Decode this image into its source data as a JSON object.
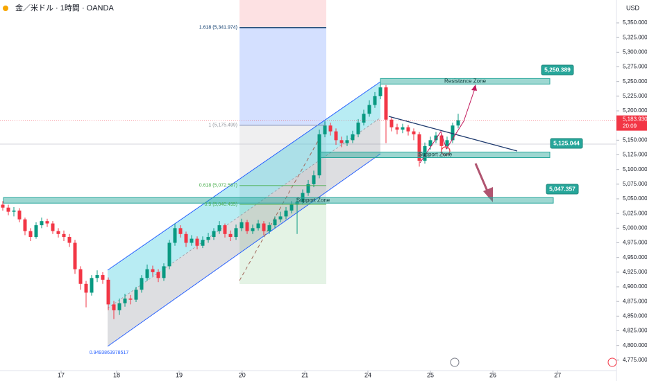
{
  "chart_data": {
    "type": "candlestick",
    "title": "金／米ドル · 1時間 · OANDA",
    "currency": "USD",
    "up_color": "#089981",
    "down_color": "#f23645",
    "open": [
      5040,
      5035,
      5028,
      5030,
      5015,
      4995,
      4985,
      5005,
      5012,
      5008,
      4995,
      4990,
      4985,
      4975,
      4930,
      4905,
      4890,
      4915,
      4920,
      4912,
      4870,
      4860,
      4872,
      4880,
      4878,
      4895,
      4915,
      4930,
      4925,
      4915,
      4935,
      4975,
      5000,
      4990,
      4975,
      4982,
      4970,
      4980,
      4985,
      4995,
      5005,
      4990,
      4985,
      5000,
      5010,
      4995,
      5000,
      5008,
      4995,
      5005,
      5015,
      5020,
      5030,
      5040,
      5045,
      5060,
      5075,
      5090,
      5160,
      5175,
      5165,
      5150,
      5145,
      5150,
      5160,
      5180,
      5195,
      5210,
      5225,
      5240,
      5185,
      5172,
      5168,
      5172,
      5165,
      5160,
      5115,
      5140,
      5150,
      5158,
      5140,
      5150,
      5175
    ],
    "high": [
      5046,
      5040,
      5036,
      5034,
      5018,
      5000,
      5010,
      5018,
      5016,
      5012,
      5000,
      4996,
      4990,
      4980,
      4935,
      4910,
      4920,
      4928,
      4925,
      4916,
      4876,
      4880,
      4888,
      4886,
      4900,
      4920,
      4938,
      4936,
      4930,
      4940,
      4980,
      5008,
      5005,
      4994,
      4988,
      4986,
      4986,
      4992,
      5000,
      5012,
      5008,
      4996,
      5006,
      5016,
      5014,
      5006,
      5014,
      5012,
      5010,
      5020,
      5028,
      5036,
      5046,
      5052,
      5066,
      5082,
      5098,
      5168,
      5182,
      5180,
      5170,
      5156,
      5158,
      5166,
      5186,
      5202,
      5218,
      5232,
      5248,
      5244,
      5190,
      5178,
      5178,
      5176,
      5170,
      5164,
      5146,
      5156,
      5164,
      5160,
      5156,
      5180,
      5195
    ],
    "low": [
      5030,
      5022,
      5020,
      5010,
      4988,
      4978,
      4982,
      5000,
      5002,
      4990,
      4984,
      4978,
      4968,
      4922,
      4895,
      4865,
      4885,
      4908,
      4905,
      4860,
      4845,
      4852,
      4866,
      4870,
      4874,
      4890,
      4910,
      4918,
      4908,
      4910,
      4930,
      4970,
      4984,
      4968,
      4970,
      4964,
      4966,
      4975,
      4980,
      4990,
      4984,
      4978,
      4980,
      4995,
      4990,
      4990,
      4996,
      4988,
      4990,
      5000,
      5010,
      5015,
      5025,
      4990,
      5040,
      5055,
      5070,
      5085,
      5155,
      5158,
      5142,
      5138,
      5140,
      5145,
      5155,
      5175,
      5190,
      5205,
      5220,
      5145,
      5165,
      5160,
      5162,
      5158,
      5150,
      5105,
      5110,
      5134,
      5145,
      5132,
      5135,
      5145,
      5170
    ],
    "close": [
      5035,
      5028,
      5030,
      5015,
      4995,
      4985,
      5005,
      5012,
      5008,
      4995,
      4990,
      4985,
      4975,
      4930,
      4905,
      4890,
      4915,
      4920,
      4912,
      4870,
      4860,
      4872,
      4880,
      4878,
      4895,
      4915,
      4930,
      4925,
      4915,
      4935,
      4975,
      5000,
      4990,
      4975,
      4982,
      4970,
      4980,
      4985,
      4995,
      5005,
      4990,
      4985,
      5000,
      5010,
      4995,
      5000,
      5008,
      4995,
      5005,
      5015,
      5020,
      5030,
      5040,
      5045,
      5060,
      5075,
      5090,
      5160,
      5175,
      5165,
      5150,
      5145,
      5150,
      5160,
      5180,
      5195,
      5210,
      5225,
      5240,
      5185,
      5172,
      5168,
      5172,
      5165,
      5160,
      5115,
      5140,
      5150,
      5158,
      5140,
      5150,
      5175,
      5183.93
    ],
    "xlim": [
      -0.5,
      110.5
    ],
    "xticks": [
      {
        "value": 10.5,
        "label": "17"
      },
      {
        "value": 20.5,
        "label": "18"
      },
      {
        "value": 31.75,
        "label": "19"
      },
      {
        "value": 43.1,
        "label": "20"
      },
      {
        "value": 54.4,
        "label": "21"
      },
      {
        "value": 65.75,
        "label": "24"
      },
      {
        "value": 77,
        "label": "25"
      },
      {
        "value": 88.25,
        "label": "26"
      },
      {
        "value": 99.9,
        "label": "27"
      }
    ],
    "ylim": [
      4763,
      5389
    ],
    "yticks": [
      {
        "value": 4775,
        "label": "4,775.000"
      },
      {
        "value": 4800,
        "label": "4,800.000"
      },
      {
        "value": 4825,
        "label": "4,825.000"
      },
      {
        "value": 4850,
        "label": "4,850.000"
      },
      {
        "value": 4875,
        "label": "4,875.000"
      },
      {
        "value": 4900,
        "label": "4,900.000"
      },
      {
        "value": 4925,
        "label": "4,925.000"
      },
      {
        "value": 4950,
        "label": "4,950.000"
      },
      {
        "value": 4975,
        "label": "4,975.000"
      },
      {
        "value": 5000,
        "label": "5,000.000"
      },
      {
        "value": 5025,
        "label": "5,025.000"
      },
      {
        "value": 5050,
        "label": "5,050.000"
      },
      {
        "value": 5075,
        "label": "5,075.000"
      },
      {
        "value": 5100,
        "label": "5,100.000"
      },
      {
        "value": 5125,
        "label": "5,125.000"
      },
      {
        "value": 5150,
        "label": "5,150.000"
      },
      {
        "value": 5175,
        "label": "5,175.000"
      },
      {
        "value": 5200,
        "label": "5,200.000"
      },
      {
        "value": 5225,
        "label": "5,225.000"
      },
      {
        "value": 5250,
        "label": "5,250.000"
      },
      {
        "value": 5275,
        "label": "5,275.000"
      },
      {
        "value": 5300,
        "label": "5,300.000"
      },
      {
        "value": 5325,
        "label": "5,325.000"
      },
      {
        "value": 5350,
        "label": "5,350.000"
      }
    ],
    "last_price": 5183.93,
    "last_price_label": "5,183.930",
    "countdown": "20:09",
    "zones": [
      {
        "name": "Resistance Zone",
        "value": 5250.389,
        "label": "5,250.389"
      },
      {
        "name": "Support Zone",
        "value": 5125.044,
        "label": "5,125.044"
      },
      {
        "name": "Support Zone",
        "value": 5047.357,
        "label": "5,047.357"
      }
    ],
    "fib_levels": [
      {
        "label": "1.618 (5,341.974)",
        "value": 5341.974
      },
      {
        "label": "1 (5,175.499)",
        "value": 5175.499
      },
      {
        "label": "0.618 (5,072.597)",
        "value": 5072.597
      },
      {
        "label": "0.5 (5,040.495)",
        "value": 5040.495
      }
    ],
    "annotation": "0.9493863978517"
  }
}
